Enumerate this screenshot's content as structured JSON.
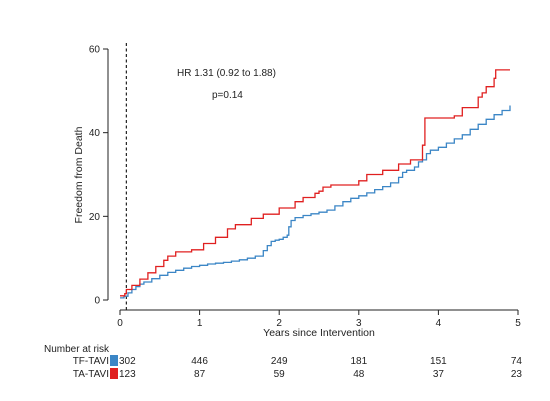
{
  "chart_data": {
    "type": "line",
    "subtype": "step",
    "xlabel": "Years since Intervention",
    "ylabel": "Freedom from Death",
    "xlim": [
      0,
      5
    ],
    "ylim": [
      0,
      60
    ],
    "xticks": [
      0,
      1,
      2,
      3,
      4,
      5
    ],
    "yticks": [
      0,
      20,
      40,
      60
    ],
    "grid": false,
    "reference_line_x": 0.08,
    "annotations": {
      "hr": "HR 1.31 (0.92 to 1.88)",
      "p": "p=0.14"
    },
    "series": [
      {
        "name": "TF-TAVI",
        "color": "#3b86c6",
        "points": [
          [
            0,
            0.5
          ],
          [
            0.05,
            0.9
          ],
          [
            0.1,
            1.7
          ],
          [
            0.15,
            2.5
          ],
          [
            0.2,
            3.2
          ],
          [
            0.25,
            3.8
          ],
          [
            0.3,
            4.3
          ],
          [
            0.4,
            5.1
          ],
          [
            0.5,
            5.9
          ],
          [
            0.6,
            6.6
          ],
          [
            0.7,
            7.1
          ],
          [
            0.8,
            7.6
          ],
          [
            0.9,
            8.0
          ],
          [
            1.0,
            8.3
          ],
          [
            1.1,
            8.6
          ],
          [
            1.2,
            8.8
          ],
          [
            1.3,
            9.0
          ],
          [
            1.4,
            9.3
          ],
          [
            1.5,
            9.6
          ],
          [
            1.6,
            10.0
          ],
          [
            1.7,
            10.5
          ],
          [
            1.8,
            11.8
          ],
          [
            1.85,
            13.0
          ],
          [
            1.9,
            14.0
          ],
          [
            1.95,
            14.3
          ],
          [
            2.0,
            14.5
          ],
          [
            2.05,
            15.0
          ],
          [
            2.1,
            15.5
          ],
          [
            2.12,
            17.5
          ],
          [
            2.15,
            19.0
          ],
          [
            2.2,
            19.7
          ],
          [
            2.3,
            20.2
          ],
          [
            2.4,
            20.6
          ],
          [
            2.5,
            21.0
          ],
          [
            2.6,
            21.5
          ],
          [
            2.7,
            22.5
          ],
          [
            2.8,
            23.5
          ],
          [
            2.9,
            24.3
          ],
          [
            3.0,
            24.9
          ],
          [
            3.1,
            25.6
          ],
          [
            3.2,
            26.4
          ],
          [
            3.3,
            27.1
          ],
          [
            3.4,
            28.0
          ],
          [
            3.5,
            29.3
          ],
          [
            3.55,
            30.5
          ],
          [
            3.6,
            31.0
          ],
          [
            3.7,
            31.8
          ],
          [
            3.75,
            33.0
          ],
          [
            3.8,
            33.5
          ],
          [
            3.85,
            35.0
          ],
          [
            3.9,
            35.8
          ],
          [
            4.0,
            36.5
          ],
          [
            4.1,
            37.5
          ],
          [
            4.2,
            38.5
          ],
          [
            4.3,
            39.5
          ],
          [
            4.4,
            40.8
          ],
          [
            4.5,
            42.0
          ],
          [
            4.6,
            43.2
          ],
          [
            4.7,
            44.3
          ],
          [
            4.8,
            45.3
          ],
          [
            4.9,
            46.5
          ]
        ]
      },
      {
        "name": "TA-TAVI",
        "color": "#e02020",
        "points": [
          [
            0,
            1.0
          ],
          [
            0.06,
            1.5
          ],
          [
            0.08,
            2.5
          ],
          [
            0.15,
            3.5
          ],
          [
            0.25,
            5.0
          ],
          [
            0.35,
            6.5
          ],
          [
            0.45,
            8.0
          ],
          [
            0.55,
            9.5
          ],
          [
            0.6,
            10.5
          ],
          [
            0.7,
            11.5
          ],
          [
            0.9,
            12.0
          ],
          [
            1.05,
            13.5
          ],
          [
            1.2,
            15.0
          ],
          [
            1.35,
            17.0
          ],
          [
            1.45,
            18.0
          ],
          [
            1.65,
            19.5
          ],
          [
            1.8,
            20.5
          ],
          [
            2.0,
            22.0
          ],
          [
            2.2,
            23.5
          ],
          [
            2.3,
            24.5
          ],
          [
            2.45,
            25.5
          ],
          [
            2.5,
            26.0
          ],
          [
            2.55,
            27.0
          ],
          [
            2.65,
            27.5
          ],
          [
            3.0,
            28.5
          ],
          [
            3.1,
            30.0
          ],
          [
            3.3,
            31.0
          ],
          [
            3.5,
            32.5
          ],
          [
            3.65,
            33.5
          ],
          [
            3.8,
            37.0
          ],
          [
            3.83,
            43.5
          ],
          [
            4.2,
            44.0
          ],
          [
            4.3,
            46.0
          ],
          [
            4.5,
            48.5
          ],
          [
            4.55,
            49.5
          ],
          [
            4.6,
            51.0
          ],
          [
            4.7,
            53.0
          ],
          [
            4.72,
            55.0
          ],
          [
            4.9,
            55.0
          ]
        ]
      }
    ]
  },
  "risk_table": {
    "header": "Number at risk",
    "times": [
      "0",
      "1",
      "2",
      "3",
      "4",
      "5"
    ],
    "rows": [
      {
        "label": "TF-TAVI",
        "color": "#3b86c6",
        "values": [
          "302",
          "446",
          "249",
          "181",
          "151",
          "74"
        ]
      },
      {
        "label": "TA-TAVI",
        "color": "#e02020",
        "values": [
          "123",
          "87",
          "59",
          "48",
          "37",
          "23"
        ]
      }
    ]
  }
}
